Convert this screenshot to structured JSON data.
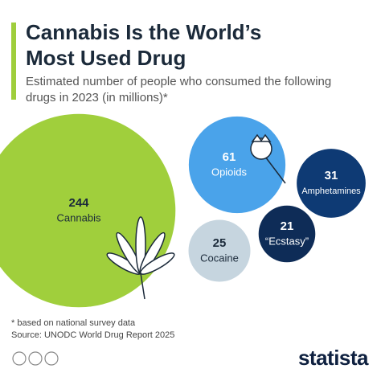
{
  "chart_data": {
    "type": "bubble",
    "title": "Cannabis Is the World’s Most Used Drug",
    "subtitle": "Estimated number of people who consumed the following drugs in 2023 (in millions)*",
    "categories": [
      "Cannabis",
      "Opioids",
      "Amphetamines",
      "“Ecstasy”",
      "Cocaine"
    ],
    "values": [
      244,
      61,
      31,
      21,
      25
    ],
    "colors": [
      "#a0cf3c",
      "#4aa3ea",
      "#0e3a74",
      "#0e2c57",
      "#c6d5df"
    ],
    "note": "* based on national survey data",
    "source": "Source: UNODC World Drug Report 2025",
    "brand": "statista"
  }
}
